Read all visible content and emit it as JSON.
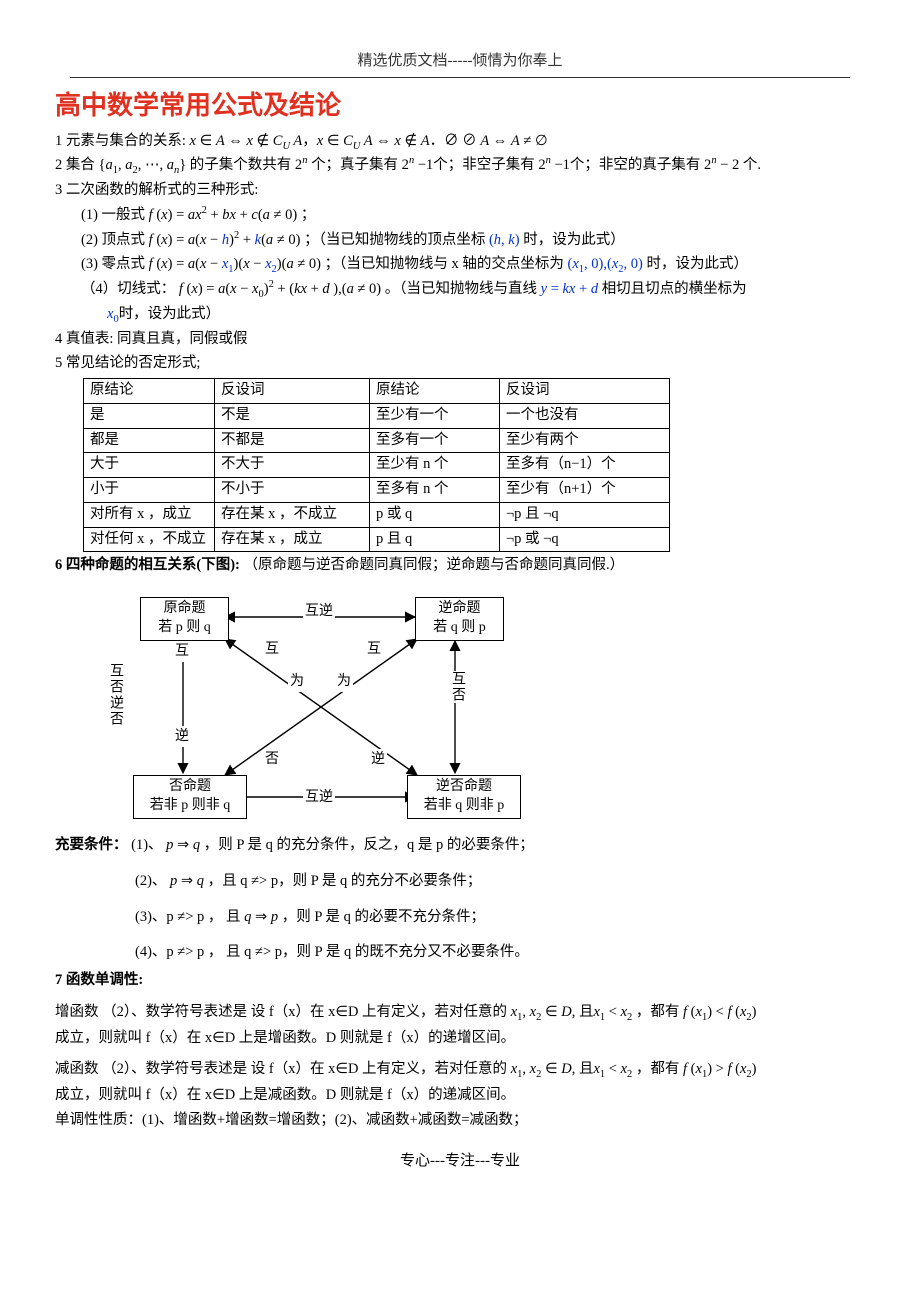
{
  "header": "精选优质文档-----倾情为你奉上",
  "title": "高中数学常用公式及结论",
  "sec1": {
    "label": "1  元素与集合的关系:",
    "formula": "x ∈ A ⇔ x ∉ CU A，x ∈ CU A ⇔ x ∉ A．∅ ⊘ A ⇔ A ≠ ∅"
  },
  "sec2": "2 集合 {a₁, a₂, ⋯, aₙ} 的子集个数共有 2ⁿ  个；真子集有 2ⁿ −1个；非空子集有 2ⁿ −1个；非空的真子集有 2ⁿ − 2 个.",
  "sec3": {
    "head": "3 二次函数的解析式的三种形式:",
    "i1a": "(1)  一般式 ",
    "i1b": "f (x) = ax² + bx + c(a ≠ 0) ；",
    "i2a": "(2)  顶点式 ",
    "i2f": "f (x) = a(x − h)² + k(a ≠ 0) ",
    "i2b": "；（当已知抛物线的顶点坐标 ",
    "i2c": "(h, k)",
    "i2d": " 时，设为此式）",
    "i3a": "(3)  零点式 ",
    "i3f": "f (x) = a(x − x₁)(x − x₂)(a ≠ 0) ",
    "i3b": "；（当已知抛物线与 x 轴的交点坐标为 ",
    "i3c": "(x₁, 0),(x₂, 0)",
    "i3d": " 时，设为此式）",
    "i4a": "（4）切线式：  ",
    "i4f": "f (x) = a(x − x₀)² + (kx + d ),(a ≠ 0) ",
    "i4b": "。（当已知抛物线与直线 ",
    "i4c": "y = kx + d",
    "i4d": " 相切且切点的横坐标为 ",
    "i4e": "x₀",
    "i4g": "时，设为此式）"
  },
  "sec4": "4  真值表:           同真且真，同假或假",
  "sec5": "5  常见结论的否定形式;",
  "table": {
    "rows": [
      [
        "原结论",
        "反设词",
        "原结论",
        "反设词"
      ],
      [
        "是",
        "不是",
        "至少有一个",
        "一个也没有"
      ],
      [
        "都是",
        "不都是",
        "至多有一个",
        "至少有两个"
      ],
      [
        "大于",
        "不大于",
        "至少有 n 个",
        "至多有（n−1）个"
      ],
      [
        "小于",
        "不小于",
        "至多有 n 个",
        "至少有（n+1）个"
      ],
      [
        "对所有 x ，成立",
        "存在某 x ，不成立",
        "p 或 q",
        "¬p 且 ¬q"
      ],
      [
        "对任何 x ，不成立",
        "存在某 x ，成立",
        "p 且 q",
        "¬p 或 ¬q"
      ]
    ]
  },
  "sec6a": "6  四种命题的相互关系(下图):",
  "sec6b": "（原命题与逆否命题同真同假；逆命题与否命题同真同假.）",
  "diagram": {
    "b1a": "原命题",
    "b1b": "若 p 则 q",
    "b2a": "逆命题",
    "b2b": "若 q 则 p",
    "b3a": "否命题",
    "b3b": "若非 p 则非 q",
    "b4a": "逆否命题",
    "b4b": "若非 q 则非 p",
    "huni": "互逆",
    "hufou": "互否",
    "huniF": "互 逆 否",
    "hu": "互",
    "wei": "为",
    "fou": "否",
    "ni": "逆"
  },
  "cond": {
    "head": "充要条件：  (1)、 p ⇒ q ，则 P 是 q 的充分条件，反之，q 是 p 的必要条件；",
    "l2": "(2)、 p ⇒ q ，且 q  ≠>  p，则 P 是 q 的充分不必要条件；",
    "l3": "(3)、p  ≠>  p ， 且 q ⇒ p ，则 P 是 q 的必要不充分条件；",
    "l4": "(4)、p  ≠>  p ， 且 q  ≠>  p，则 P 是 q 的既不充分又不必要条件。"
  },
  "sec7": {
    "head": "7  函数单调性:",
    "inc1a": "增函数 （2）、数学符号表述是  设 f（x）在 x∈D 上有定义，若对任意的",
    "inc1b": " x₁, x₂ ∈ D, 且x₁ < x₂ ",
    "inc1c": "，都有",
    "inc1d": " f (x₁) < f (x₂) ",
    "inc2": "成立，则就叫 f（x）在 x∈D 上是增函数。D 则就是 f（x）的递增区间。",
    "dec1a": "减函数    （2）、数学符号表述是  设 f（x）在 x∈D 上有定义，若对任意的",
    "dec1c": "，都有",
    "dec1d": " f (x₁) > f (x₂) ",
    "dec2": "成立，则就叫 f（x）在 x∈D 上是减函数。D 则就是 f（x）的递减区间。",
    "mono": "单调性性质：(1)、增函数+增函数=增函数；(2)、减函数+减函数=减函数；"
  },
  "footer": "专心---专注---专业",
  "colors": {
    "title": "#e03020",
    "blue": "#0030d0",
    "text": "#000000"
  }
}
